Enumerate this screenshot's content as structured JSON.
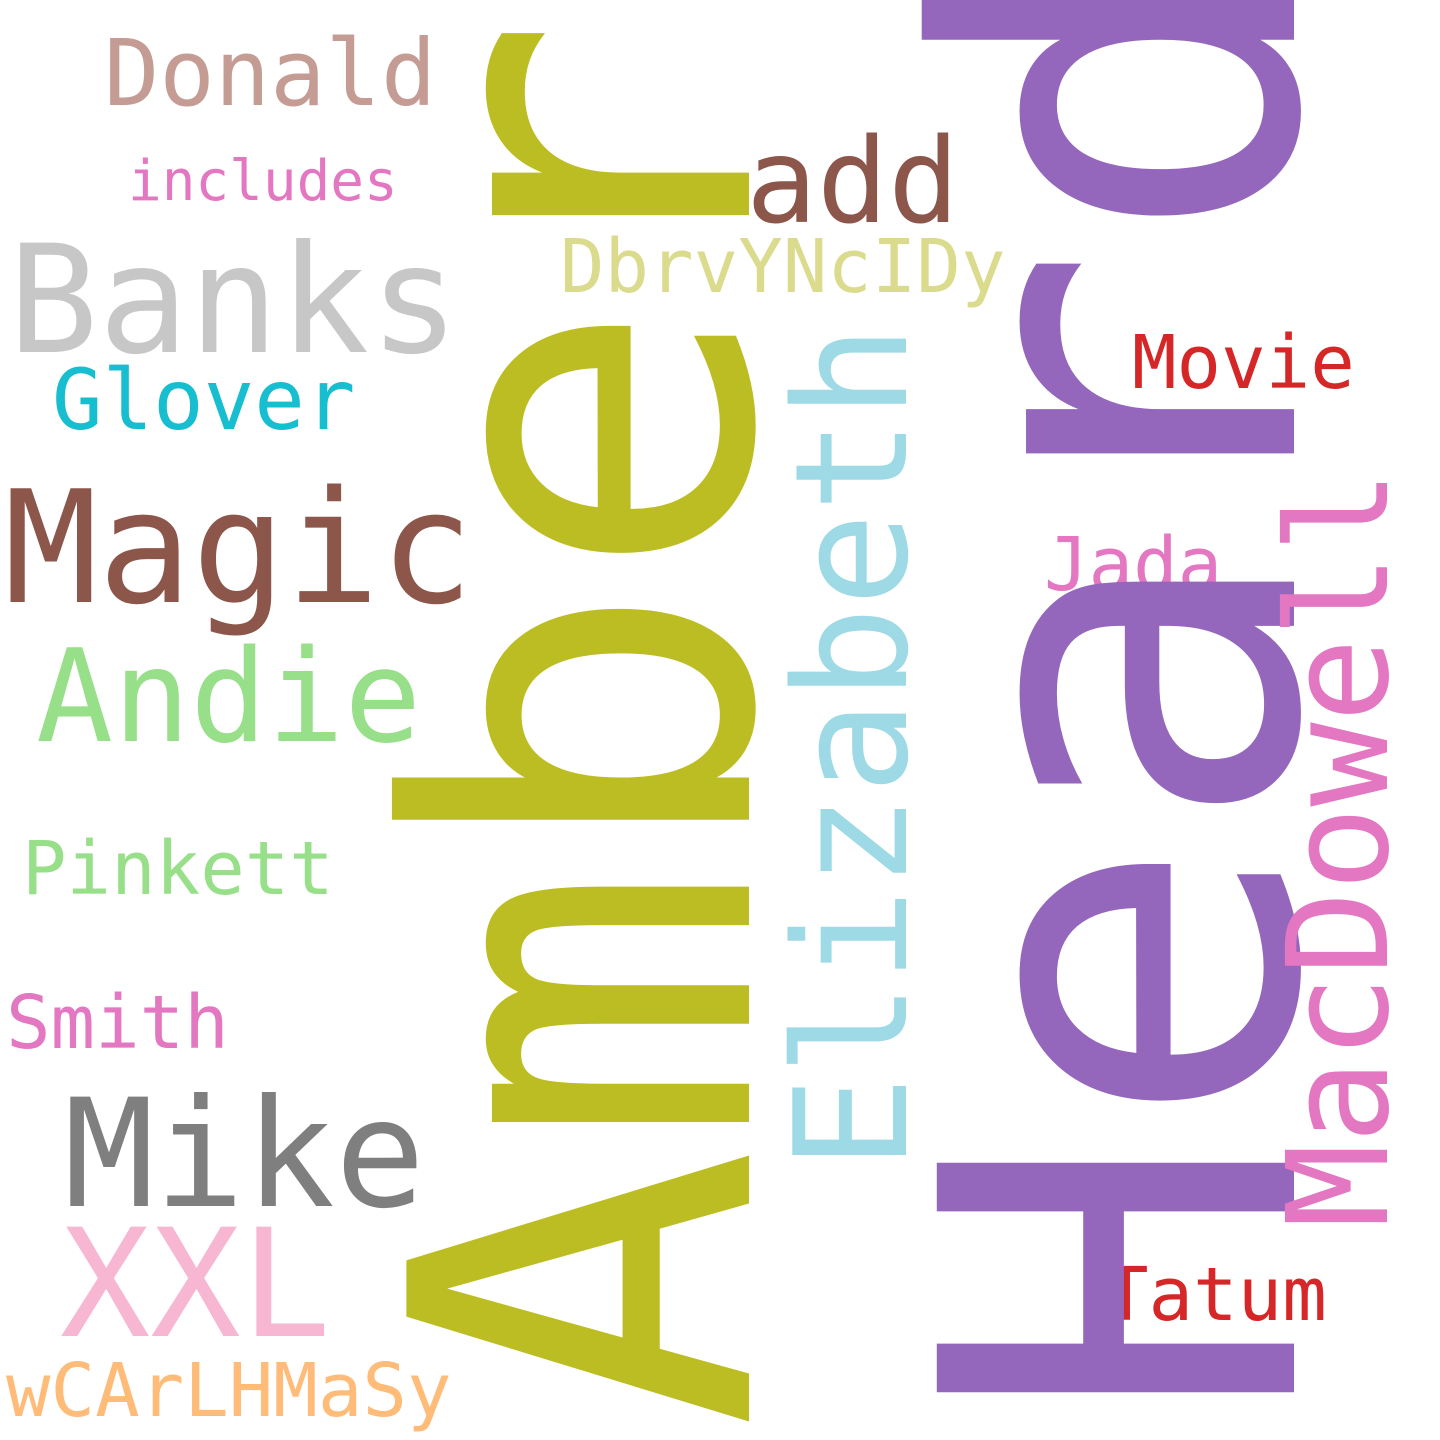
{
  "words": {
    "heard": {
      "text": "Heard",
      "color": "#9467bd"
    },
    "amber": {
      "text": "Amber",
      "color": "#bcbd22"
    },
    "banks": {
      "text": "Banks",
      "color": "#c7c7c7"
    },
    "magic": {
      "text": "Magic",
      "color": "#8c564b"
    },
    "mike": {
      "text": "Mike",
      "color": "#7f7f7f"
    },
    "elizabeth": {
      "text": "Elizabeth",
      "color": "#9edae5"
    },
    "macdowell": {
      "text": "MacDowell",
      "color": "#e377c2"
    },
    "andie": {
      "text": "Andie",
      "color": "#98df8a"
    },
    "xxl": {
      "text": "XXL",
      "color": "#f7b6d2"
    },
    "add": {
      "text": "add",
      "color": "#8c564b"
    },
    "donald": {
      "text": "Donald",
      "color": "#c49c94"
    },
    "glover": {
      "text": "Glover",
      "color": "#17becf"
    },
    "dbrv": {
      "text": "DbrvYNcIDy",
      "color": "#dbdb8d"
    },
    "movie": {
      "text": "Movie",
      "color": "#d62728"
    },
    "jada": {
      "text": "Jada",
      "color": "#e377c2"
    },
    "pinkett": {
      "text": "Pinkett",
      "color": "#98df8a"
    },
    "smith": {
      "text": "Smith",
      "color": "#e377c2"
    },
    "tatum": {
      "text": "Tatum",
      "color": "#d62728"
    },
    "wcar": {
      "text": "wCArLHMaSy",
      "color": "#ffbb78"
    },
    "includes": {
      "text": "includes",
      "color": "#e377c2"
    }
  }
}
